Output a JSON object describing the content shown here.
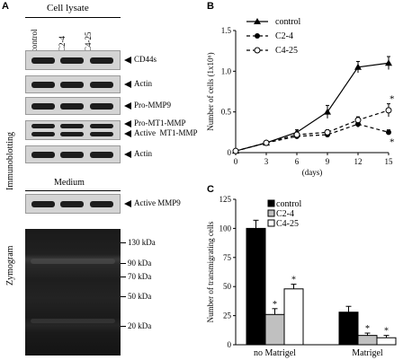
{
  "panel_a": {
    "letter": "A",
    "cell_lysate": "Cell lysate",
    "lanes": [
      "control",
      "C2-4",
      "C4-25"
    ],
    "immunoblotting": "Immunoblotting",
    "bands": [
      "CD44s",
      "Actin",
      "Pro-MMP9",
      "Pro-MT1-MMP",
      "Active  MT1-MMP",
      "Actin"
    ],
    "medium": "Medium",
    "medium_band": "Active MMP9",
    "zymogram": "Zymogram",
    "markers": [
      "130 kDa",
      "90 kDa",
      "70 kDa",
      "50 kDa",
      "20 kDa"
    ]
  },
  "panel_b": {
    "letter": "B"
  },
  "panel_c": {
    "letter": "C"
  },
  "chart_data": [
    {
      "type": "line",
      "xlabel": "(days)",
      "ylabel": "Number of cells (1x10⁶)",
      "x": [
        0,
        3,
        6,
        9,
        12,
        15
      ],
      "xlim": [
        0,
        15
      ],
      "ylim": [
        0,
        1.5
      ],
      "xticks": [
        "0",
        "3",
        "6",
        "9",
        "12",
        "15"
      ],
      "yticks": [
        "0",
        "0.5",
        "1.0",
        "1.5"
      ],
      "legend_position": "top-left",
      "series": [
        {
          "name": "control",
          "values": [
            0.02,
            0.12,
            0.25,
            0.5,
            1.05,
            1.1
          ],
          "errors": [
            0.01,
            0.02,
            0.03,
            0.08,
            0.07,
            0.08
          ],
          "marker": "filled-triangle",
          "line": "solid"
        },
        {
          "name": "C2-4",
          "values": [
            0.02,
            0.12,
            0.2,
            0.22,
            0.35,
            0.25
          ],
          "errors": [
            0.01,
            0.02,
            0.02,
            0.03,
            0.04,
            0.03
          ],
          "marker": "filled-circle",
          "line": "dashed"
        },
        {
          "name": "C4-25",
          "values": [
            0.02,
            0.12,
            0.22,
            0.25,
            0.4,
            0.52
          ],
          "errors": [
            0.01,
            0.02,
            0.02,
            0.03,
            0.04,
            0.08
          ],
          "marker": "open-circle",
          "line": "dashed"
        }
      ],
      "annotations": [
        "*",
        "*"
      ]
    },
    {
      "type": "bar",
      "ylabel": "Number of transmigrating cells",
      "categories": [
        "no Matrigel",
        "Matrigel"
      ],
      "ylim": [
        0,
        125
      ],
      "yticks": [
        "0",
        "25",
        "50",
        "75",
        "100",
        "125"
      ],
      "legend_position": "top-left",
      "series": [
        {
          "name": "control",
          "values": [
            100,
            28
          ],
          "errors": [
            7,
            5
          ],
          "color": "#000000"
        },
        {
          "name": "C2-4",
          "values": [
            26,
            8
          ],
          "errors": [
            5,
            2
          ],
          "color": "#c0c0c0"
        },
        {
          "name": "C4-25",
          "values": [
            48,
            6
          ],
          "errors": [
            4,
            2
          ],
          "color": "#ffffff"
        }
      ],
      "annotations": [
        "*",
        "*",
        "*",
        "*"
      ]
    }
  ]
}
